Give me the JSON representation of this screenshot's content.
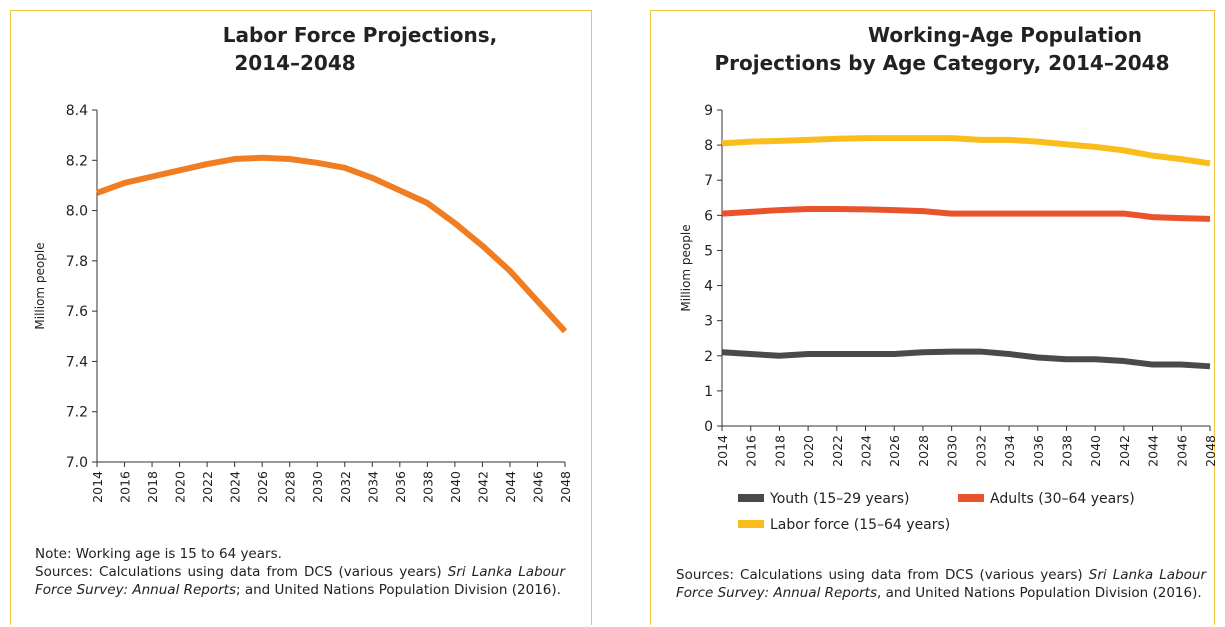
{
  "chart_data": [
    {
      "type": "line",
      "title": [
        "Labor Force Projections,",
        "2014–2048"
      ],
      "ylabel": "Milliom people",
      "x": [
        2014,
        2016,
        2018,
        2020,
        2022,
        2024,
        2026,
        2028,
        2030,
        2032,
        2034,
        2036,
        2038,
        2040,
        2042,
        2044,
        2046,
        2048
      ],
      "values": [
        8.07,
        8.11,
        8.135,
        8.16,
        8.185,
        8.205,
        8.21,
        8.205,
        8.19,
        8.17,
        8.13,
        8.08,
        8.03,
        7.95,
        7.86,
        7.76,
        7.64,
        7.52
      ],
      "color": "#f07d21",
      "xlim": [
        2014,
        2048
      ],
      "xticks": [
        2014,
        2016,
        2018,
        2020,
        2022,
        2024,
        2026,
        2028,
        2030,
        2032,
        2034,
        2036,
        2038,
        2040,
        2042,
        2044,
        2046,
        2048
      ],
      "ylim": [
        7.0,
        8.4
      ],
      "yticks": [
        {
          "value": 7,
          "label": "7.0"
        },
        7.2,
        7.4,
        7.6,
        7.8,
        {
          "value": 8,
          "label": "8.0"
        },
        8.2,
        8.4
      ],
      "grid": false,
      "note": "Note: Working age is 15 to 64 years.",
      "sources": {
        "text": "Sources: Calculations using data from DCS (various years) ",
        "italic": "Sri Lanka Labour Force Survey: Annual Reports",
        "rest": "; and United Nations Population Division (2016)."
      }
    },
    {
      "type": "line",
      "title": [
        "Working-Age Population",
        "Projections by Age Category, 2014–2048"
      ],
      "ylabel": "Milliom people",
      "x": [
        2014,
        2016,
        2018,
        2020,
        2022,
        2024,
        2026,
        2028,
        2030,
        2032,
        2034,
        2036,
        2038,
        2040,
        2042,
        2044,
        2046,
        2048
      ],
      "series": [
        {
          "name": "Youth (15–29 years)",
          "color": "#4a4a4a",
          "values": [
            2.1,
            2.05,
            2.0,
            2.05,
            2.05,
            2.05,
            2.05,
            2.1,
            2.12,
            2.12,
            2.05,
            1.95,
            1.9,
            1.9,
            1.85,
            1.75,
            1.75,
            1.7
          ]
        },
        {
          "name": "Adults (30–64 years)",
          "color": "#e8532c",
          "values": [
            6.05,
            6.1,
            6.15,
            6.18,
            6.18,
            6.17,
            6.15,
            6.12,
            6.05,
            6.05,
            6.05,
            6.05,
            6.05,
            6.05,
            6.05,
            5.95,
            5.92,
            5.9
          ]
        },
        {
          "name": "Labor force (15–64 years)",
          "color": "#f9be1c",
          "values": [
            8.05,
            8.1,
            8.12,
            8.15,
            8.18,
            8.2,
            8.2,
            8.2,
            8.2,
            8.15,
            8.15,
            8.1,
            8.02,
            7.95,
            7.85,
            7.7,
            7.6,
            7.48
          ]
        }
      ],
      "xlim": [
        2014,
        2048
      ],
      "xticks": [
        2014,
        2016,
        2018,
        2020,
        2022,
        2024,
        2026,
        2028,
        2030,
        2032,
        2034,
        2036,
        2038,
        2040,
        2042,
        2044,
        2046,
        2048
      ],
      "ylim": [
        0,
        9
      ],
      "yticks": [
        0,
        1,
        2,
        3,
        4,
        5,
        6,
        7,
        8,
        9
      ],
      "grid": false,
      "sources": {
        "text": "Sources: Calculations using data from DCS (various years) ",
        "italic": "Sri Lanka Labour Force Survey: Annual Reports",
        "rest": ", and United Nations Population Division (2016)."
      }
    }
  ]
}
